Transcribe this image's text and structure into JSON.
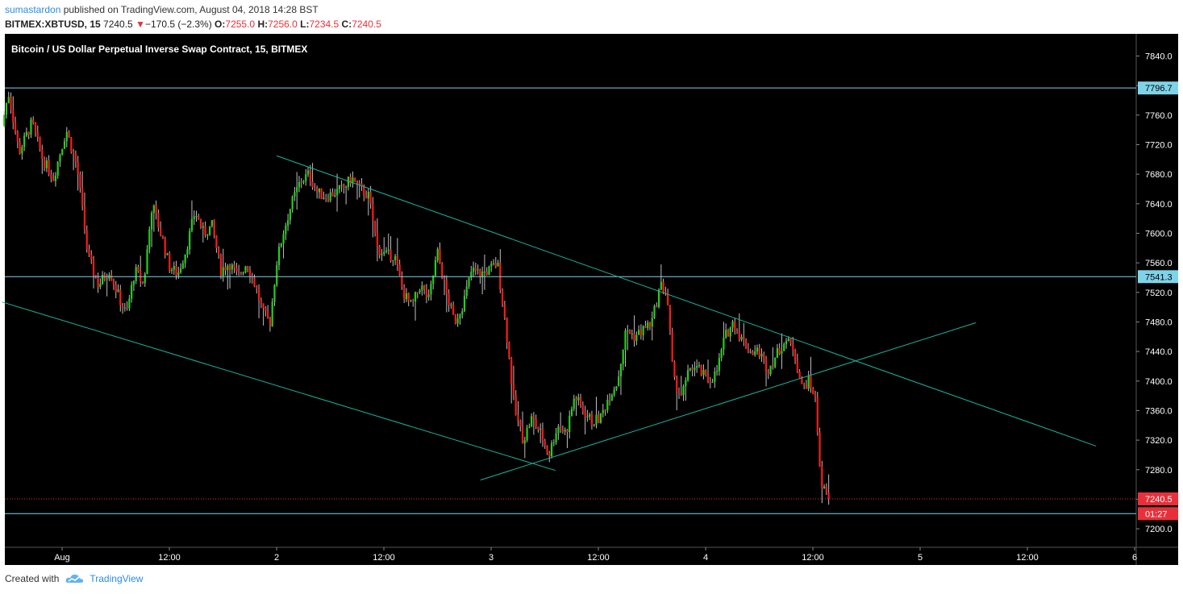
{
  "header": {
    "author": "sumastardon",
    "published_text": " published on TradingView.com, August 04, 2018 14:28 BST",
    "symbol": "BITMEX:XBTUSD, 15",
    "last": "7240.5",
    "change_arrow": "▼",
    "change": "−170.5 (−2.3%)",
    "o_label": "O:",
    "o_value": "7255.0",
    "h_label": "H:",
    "h_value": "7256.0",
    "l_label": "L:",
    "l_value": "7234.5",
    "c_label": "C:",
    "c_value": "7240.5"
  },
  "footer": {
    "created_with": "Created with",
    "brand": "TradingView",
    "logo_icon": "tradingview-cloud-icon"
  },
  "colors": {
    "background": "#000000",
    "up": "#22d11a",
    "down": "#ff1a1a",
    "wick": "#c0c0c0",
    "level_line": "#7fd3e8",
    "trend_line": "#19b39a",
    "price_line": "#e8303a",
    "frame": "#555555"
  },
  "chart_data": {
    "type": "candlestick",
    "title": "Bitcoin / US Dollar Perpetual Inverse Swap Contract, 15, BITMEX",
    "ylim": [
      7175,
      7870
    ],
    "xlim": [
      0,
      5.02
    ],
    "y_ticks": [
      "7840.0",
      "7800.0",
      "7760.0",
      "7720.0",
      "7680.0",
      "7640.0",
      "7600.0",
      "7560.0",
      "7520.0",
      "7480.0",
      "7440.0",
      "7400.0",
      "7360.0",
      "7320.0",
      "7280.0",
      "7240.0",
      "7200.0"
    ],
    "x_ticks": [
      {
        "label": "Aug",
        "day": 0.27
      },
      {
        "label": "12:00",
        "day": 0.77
      },
      {
        "label": "2",
        "day": 1.27
      },
      {
        "label": "12:00",
        "day": 1.77
      },
      {
        "label": "3",
        "day": 2.27
      },
      {
        "label": "12:00",
        "day": 2.77
      },
      {
        "label": "4",
        "day": 3.27
      },
      {
        "label": "12:00",
        "day": 3.77
      },
      {
        "label": "5",
        "day": 4.27
      },
      {
        "label": "12:00",
        "day": 4.77
      },
      {
        "label": "6",
        "day": 5.27
      }
    ],
    "last_candle_day": 3.85,
    "key_points": [
      [
        0.0,
        7745
      ],
      [
        0.03,
        7790
      ],
      [
        0.08,
        7710
      ],
      [
        0.14,
        7750
      ],
      [
        0.19,
        7700
      ],
      [
        0.24,
        7675
      ],
      [
        0.3,
        7740
      ],
      [
        0.35,
        7690
      ],
      [
        0.4,
        7570
      ],
      [
        0.45,
        7530
      ],
      [
        0.5,
        7550
      ],
      [
        0.55,
        7510
      ],
      [
        0.58,
        7490
      ],
      [
        0.62,
        7550
      ],
      [
        0.66,
        7530
      ],
      [
        0.7,
        7640
      ],
      [
        0.75,
        7590
      ],
      [
        0.78,
        7555
      ],
      [
        0.82,
        7545
      ],
      [
        0.86,
        7580
      ],
      [
        0.9,
        7630
      ],
      [
        0.94,
        7600
      ],
      [
        0.98,
        7610
      ],
      [
        1.02,
        7550
      ],
      [
        1.06,
        7560
      ],
      [
        1.1,
        7540
      ],
      [
        1.14,
        7560
      ],
      [
        1.18,
        7530
      ],
      [
        1.22,
        7490
      ],
      [
        1.25,
        7480
      ],
      [
        1.28,
        7560
      ],
      [
        1.31,
        7600
      ],
      [
        1.35,
        7640
      ],
      [
        1.39,
        7670
      ],
      [
        1.43,
        7680
      ],
      [
        1.47,
        7655
      ],
      [
        1.51,
        7650
      ],
      [
        1.55,
        7655
      ],
      [
        1.59,
        7660
      ],
      [
        1.63,
        7675
      ],
      [
        1.67,
        7660
      ],
      [
        1.71,
        7650
      ],
      [
        1.75,
        7580
      ],
      [
        1.79,
        7570
      ],
      [
        1.83,
        7570
      ],
      [
        1.87,
        7520
      ],
      [
        1.91,
        7500
      ],
      [
        1.95,
        7530
      ],
      [
        1.99,
        7510
      ],
      [
        2.03,
        7575
      ],
      [
        2.07,
        7520
      ],
      [
        2.11,
        7480
      ],
      [
        2.15,
        7505
      ],
      [
        2.19,
        7550
      ],
      [
        2.23,
        7545
      ],
      [
        2.27,
        7550
      ],
      [
        2.31,
        7560
      ],
      [
        2.35,
        7470
      ],
      [
        2.39,
        7360
      ],
      [
        2.43,
        7320
      ],
      [
        2.47,
        7350
      ],
      [
        2.51,
        7330
      ],
      [
        2.55,
        7300
      ],
      [
        2.59,
        7340
      ],
      [
        2.63,
        7330
      ],
      [
        2.67,
        7380
      ],
      [
        2.71,
        7360
      ],
      [
        2.75,
        7345
      ],
      [
        2.79,
        7350
      ],
      [
        2.83,
        7380
      ],
      [
        2.87,
        7400
      ],
      [
        2.91,
        7470
      ],
      [
        2.95,
        7460
      ],
      [
        2.99,
        7470
      ],
      [
        3.03,
        7480
      ],
      [
        3.07,
        7530
      ],
      [
        3.1,
        7520
      ],
      [
        3.13,
        7400
      ],
      [
        3.17,
        7380
      ],
      [
        3.21,
        7420
      ],
      [
        3.25,
        7415
      ],
      [
        3.29,
        7400
      ],
      [
        3.33,
        7410
      ],
      [
        3.37,
        7460
      ],
      [
        3.41,
        7480
      ],
      [
        3.45,
        7455
      ],
      [
        3.49,
        7440
      ],
      [
        3.53,
        7440
      ],
      [
        3.57,
        7415
      ],
      [
        3.61,
        7435
      ],
      [
        3.65,
        7455
      ],
      [
        3.69,
        7445
      ],
      [
        3.73,
        7390
      ],
      [
        3.76,
        7400
      ],
      [
        3.79,
        7380
      ],
      [
        3.82,
        7260
      ],
      [
        3.85,
        7240
      ]
    ],
    "horizontal_levels": [
      {
        "value": 7796.7,
        "label": "7796.7"
      },
      {
        "value": 7541.3,
        "label": "7541.3"
      },
      {
        "value": 7220.5,
        "label": "01:27"
      }
    ],
    "last_price_label": "7240.5",
    "trend_lines": [
      {
        "name": "upper-channel",
        "from": [
          1.27,
          7705
        ],
        "to": [
          5.09,
          7312
        ]
      },
      {
        "name": "lower-channel",
        "from": [
          -0.01,
          7507
        ],
        "to": [
          2.57,
          7279
        ]
      },
      {
        "name": "rising-support",
        "from": [
          2.22,
          7266
        ],
        "to": [
          4.53,
          7479
        ]
      }
    ]
  }
}
